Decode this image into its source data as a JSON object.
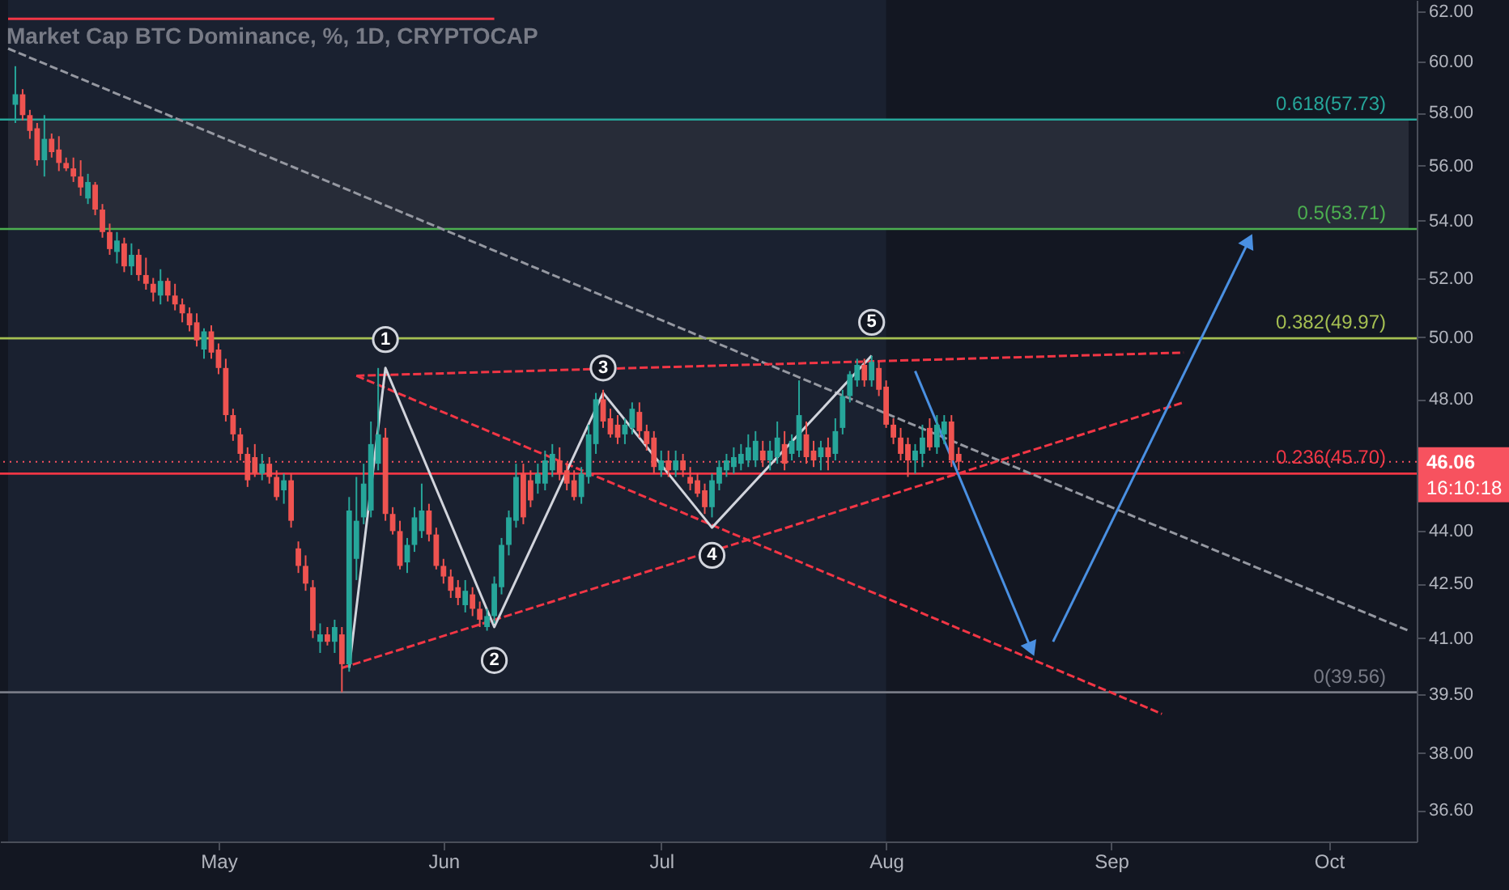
{
  "chart_data": {
    "type": "candlestick",
    "title": "Market Cap BTC Dominance, %, 1D, CRYPTOCAP",
    "xlim": [
      "--04-02",
      "--10-12"
    ],
    "xticks": [
      {
        "value": "--05-01",
        "label": "May"
      },
      {
        "value": "--06-01",
        "label": "Jun"
      },
      {
        "value": "--07-01",
        "label": "Jul"
      },
      {
        "value": "--08-01",
        "label": "Aug"
      },
      {
        "value": "--09-01",
        "label": "Sep"
      },
      {
        "value": "--10-01",
        "label": "Oct"
      }
    ],
    "log": true,
    "ylim": [
      35.85,
      62.47
    ],
    "yticks": [
      {
        "value": 62,
        "label": "62.00"
      },
      {
        "value": 60,
        "label": "60.00"
      },
      {
        "value": 58,
        "label": "58.00"
      },
      {
        "value": 56,
        "label": "56.00"
      },
      {
        "value": 54,
        "label": "54.00"
      },
      {
        "value": 52,
        "label": "52.00"
      },
      {
        "value": 50,
        "label": "50.00"
      },
      {
        "value": 48,
        "label": "48.00"
      },
      {
        "value": 44,
        "label": "44.00"
      },
      {
        "value": 42.5,
        "label": "42.50"
      },
      {
        "value": 41,
        "label": "41.00"
      },
      {
        "value": 39.5,
        "label": "39.50"
      },
      {
        "value": 38,
        "label": "38.00"
      },
      {
        "value": 36.6,
        "label": "36.60"
      }
    ],
    "x": [
      "--04-03",
      "--04-04",
      "--04-05",
      "--04-06",
      "--04-07",
      "--04-08",
      "--04-09",
      "--04-10",
      "--04-11",
      "--04-12",
      "--04-13",
      "--04-14",
      "--04-15",
      "--04-16",
      "--04-17",
      "--04-18",
      "--04-19",
      "--04-20",
      "--04-21",
      "--04-22",
      "--04-23",
      "--04-24",
      "--04-25",
      "--04-26",
      "--04-27",
      "--04-28",
      "--04-29",
      "--04-30",
      "--05-01",
      "--05-02",
      "--05-03",
      "--05-04",
      "--05-05",
      "--05-06",
      "--05-07",
      "--05-08",
      "--05-09",
      "--05-10",
      "--05-11",
      "--05-12",
      "--05-13",
      "--05-14",
      "--05-15",
      "--05-16",
      "--05-17",
      "--05-18",
      "--05-19",
      "--05-20",
      "--05-21",
      "--05-22",
      "--05-23",
      "--05-24",
      "--05-25",
      "--05-26",
      "--05-27",
      "--05-28",
      "--05-29",
      "--05-30",
      "--05-31",
      "--06-01",
      "--06-02",
      "--06-03",
      "--06-04",
      "--06-05",
      "--06-06",
      "--06-07",
      "--06-08",
      "--06-09",
      "--06-10",
      "--06-11",
      "--06-12",
      "--06-13",
      "--06-14",
      "--06-15",
      "--06-16",
      "--06-17",
      "--06-18",
      "--06-19",
      "--06-20",
      "--06-21",
      "--06-22",
      "--06-23",
      "--06-24",
      "--06-25",
      "--06-26",
      "--06-27",
      "--06-28",
      "--06-29",
      "--06-30",
      "--07-01",
      "--07-02",
      "--07-03",
      "--07-04",
      "--07-05",
      "--07-06",
      "--07-07",
      "--07-08",
      "--07-09",
      "--07-10",
      "--07-11",
      "--07-12",
      "--07-13",
      "--07-14",
      "--07-15",
      "--07-16",
      "--07-17",
      "--07-18",
      "--07-19",
      "--07-20",
      "--07-21",
      "--07-22",
      "--07-23",
      "--07-24",
      "--07-25",
      "--07-26",
      "--07-27",
      "--07-28",
      "--07-29",
      "--07-30",
      "--07-31",
      "--08-01",
      "--08-02",
      "--08-03",
      "--08-04",
      "--08-05",
      "--08-06",
      "--08-07",
      "--08-08",
      "--08-09",
      "--08-10",
      "--08-11"
    ],
    "ohlc": [
      [
        58.3,
        59.8,
        57.6,
        58.7
      ],
      [
        58.7,
        58.9,
        57.7,
        57.9
      ],
      [
        57.9,
        58.1,
        57.0,
        57.3
      ],
      [
        57.4,
        57.6,
        56.0,
        56.2
      ],
      [
        56.2,
        57.9,
        55.6,
        57.0
      ],
      [
        57.0,
        57.2,
        56.3,
        56.5
      ],
      [
        56.6,
        57.1,
        55.8,
        56.1
      ],
      [
        56.1,
        56.3,
        55.8,
        55.9
      ],
      [
        55.9,
        56.3,
        55.4,
        55.6
      ],
      [
        55.6,
        56.2,
        54.9,
        55.2
      ],
      [
        54.8,
        55.7,
        54.6,
        55.4
      ],
      [
        55.3,
        55.4,
        54.2,
        54.4
      ],
      [
        54.4,
        54.6,
        53.4,
        53.6
      ],
      [
        53.6,
        53.9,
        52.8,
        53.0
      ],
      [
        52.9,
        53.6,
        52.5,
        53.3
      ],
      [
        53.2,
        53.4,
        52.2,
        52.4
      ],
      [
        52.4,
        53.2,
        52.1,
        52.8
      ],
      [
        52.8,
        53.0,
        51.9,
        52.1
      ],
      [
        52.1,
        52.7,
        51.6,
        51.8
      ],
      [
        51.8,
        52.0,
        51.2,
        51.5
      ],
      [
        51.4,
        52.3,
        51.1,
        51.9
      ],
      [
        51.9,
        52.0,
        51.2,
        51.4
      ],
      [
        51.4,
        51.8,
        50.9,
        51.1
      ],
      [
        51.1,
        51.3,
        50.5,
        50.8
      ],
      [
        50.8,
        51.0,
        50.2,
        50.4
      ],
      [
        50.5,
        50.8,
        49.7,
        49.9
      ],
      [
        49.6,
        50.3,
        49.3,
        50.2
      ],
      [
        50.2,
        50.4,
        49.3,
        49.5
      ],
      [
        49.6,
        49.8,
        48.8,
        49.0
      ],
      [
        49.0,
        49.3,
        47.3,
        47.5
      ],
      [
        47.5,
        47.7,
        46.7,
        46.9
      ],
      [
        46.9,
        47.1,
        46.1,
        46.3
      ],
      [
        46.3,
        46.5,
        45.3,
        45.5
      ],
      [
        46.2,
        46.6,
        45.6,
        45.7
      ],
      [
        45.7,
        46.3,
        45.5,
        46.0
      ],
      [
        46.0,
        46.2,
        45.4,
        45.6
      ],
      [
        45.6,
        45.8,
        44.9,
        45.0
      ],
      [
        45.2,
        45.7,
        44.8,
        45.5
      ],
      [
        45.5,
        45.7,
        44.1,
        44.3
      ],
      [
        43.5,
        43.7,
        42.8,
        43.0
      ],
      [
        43.0,
        43.3,
        42.3,
        42.5
      ],
      [
        42.4,
        42.6,
        41.0,
        41.2
      ],
      [
        40.9,
        41.4,
        40.6,
        41.1
      ],
      [
        41.1,
        41.3,
        40.8,
        40.9
      ],
      [
        40.9,
        41.5,
        40.6,
        41.3
      ],
      [
        41.1,
        41.3,
        39.56,
        40.3
      ],
      [
        40.3,
        45.0,
        40.1,
        44.6
      ],
      [
        43.2,
        45.6,
        42.6,
        44.3
      ],
      [
        44.4,
        46.0,
        44.2,
        45.4
      ],
      [
        44.6,
        47.3,
        44.4,
        46.6
      ],
      [
        46.0,
        49.0,
        45.8,
        46.9
      ],
      [
        46.8,
        47.1,
        44.3,
        44.5
      ],
      [
        44.5,
        44.7,
        43.9,
        44.0
      ],
      [
        44.0,
        44.3,
        42.9,
        43.0
      ],
      [
        43.1,
        43.8,
        42.8,
        43.6
      ],
      [
        43.6,
        44.7,
        43.4,
        44.4
      ],
      [
        44.0,
        45.4,
        43.8,
        44.6
      ],
      [
        44.6,
        44.8,
        43.7,
        43.9
      ],
      [
        43.9,
        44.1,
        42.9,
        43.0
      ],
      [
        43.0,
        43.2,
        42.5,
        42.7
      ],
      [
        42.7,
        42.9,
        42.1,
        42.3
      ],
      [
        42.4,
        42.6,
        41.9,
        42.1
      ],
      [
        41.9,
        42.6,
        41.7,
        42.3
      ],
      [
        42.2,
        42.4,
        41.6,
        41.8
      ],
      [
        41.8,
        42.0,
        41.3,
        41.5
      ],
      [
        41.3,
        41.8,
        41.2,
        41.6
      ],
      [
        41.6,
        42.7,
        41.4,
        42.5
      ],
      [
        42.4,
        43.8,
        42.2,
        43.6
      ],
      [
        43.6,
        44.6,
        43.3,
        44.4
      ],
      [
        44.3,
        46.0,
        44.1,
        45.6
      ],
      [
        45.7,
        46.0,
        44.2,
        44.4
      ],
      [
        45.5,
        45.8,
        44.7,
        44.9
      ],
      [
        45.4,
        46.0,
        45.1,
        45.7
      ],
      [
        45.4,
        46.4,
        45.2,
        46.1
      ],
      [
        45.8,
        46.6,
        45.6,
        46.3
      ],
      [
        46.1,
        46.5,
        45.5,
        45.7
      ],
      [
        45.8,
        46.0,
        45.2,
        45.4
      ],
      [
        45.5,
        45.8,
        44.9,
        45.0
      ],
      [
        45.0,
        45.9,
        44.8,
        45.7
      ],
      [
        45.6,
        47.2,
        45.4,
        46.9
      ],
      [
        46.6,
        48.2,
        46.3,
        48.0
      ],
      [
        48.0,
        48.3,
        47.1,
        47.3
      ],
      [
        47.4,
        47.7,
        46.8,
        46.9
      ],
      [
        47.2,
        47.5,
        46.6,
        46.8
      ],
      [
        46.9,
        47.4,
        46.6,
        47.2
      ],
      [
        47.1,
        47.9,
        46.9,
        47.7
      ],
      [
        47.6,
        47.9,
        46.8,
        47.0
      ],
      [
        47.0,
        47.2,
        46.4,
        46.6
      ],
      [
        46.8,
        47.0,
        45.7,
        45.9
      ],
      [
        45.8,
        46.4,
        45.6,
        46.1
      ],
      [
        46.1,
        46.4,
        45.6,
        45.8
      ],
      [
        45.8,
        46.4,
        45.6,
        46.1
      ],
      [
        46.1,
        46.3,
        45.6,
        45.8
      ],
      [
        45.6,
        45.9,
        45.2,
        45.4
      ],
      [
        45.5,
        45.7,
        45.0,
        45.1
      ],
      [
        45.2,
        45.4,
        44.5,
        44.7
      ],
      [
        44.7,
        45.7,
        44.4,
        45.5
      ],
      [
        45.4,
        46.1,
        45.2,
        45.9
      ],
      [
        45.8,
        46.3,
        45.6,
        46.1
      ],
      [
        45.9,
        46.5,
        45.7,
        46.2
      ],
      [
        46.0,
        46.6,
        45.8,
        46.3
      ],
      [
        46.1,
        46.9,
        45.9,
        46.5
      ],
      [
        46.1,
        47.0,
        45.9,
        46.7
      ],
      [
        46.4,
        46.7,
        45.9,
        46.1
      ],
      [
        46.1,
        46.7,
        45.8,
        46.4
      ],
      [
        46.2,
        47.3,
        46.0,
        46.8
      ],
      [
        46.6,
        47.0,
        45.8,
        46.0
      ],
      [
        46.3,
        46.9,
        46.1,
        46.7
      ],
      [
        46.4,
        48.6,
        46.2,
        47.5
      ],
      [
        46.9,
        47.3,
        46.0,
        46.2
      ],
      [
        46.4,
        46.7,
        45.9,
        46.1
      ],
      [
        46.2,
        46.7,
        45.8,
        46.5
      ],
      [
        46.5,
        46.8,
        45.8,
        46.2
      ],
      [
        46.3,
        47.4,
        46.1,
        47.0
      ],
      [
        47.1,
        48.3,
        46.9,
        48.1
      ],
      [
        48.1,
        48.9,
        47.9,
        48.8
      ],
      [
        48.6,
        49.3,
        48.4,
        49.1
      ],
      [
        49.1,
        49.3,
        48.4,
        48.6
      ],
      [
        48.6,
        49.4,
        48.4,
        49.2
      ],
      [
        49.0,
        49.2,
        48.1,
        48.3
      ],
      [
        48.4,
        48.6,
        47.1,
        47.2
      ],
      [
        47.2,
        47.4,
        46.6,
        46.8
      ],
      [
        46.8,
        47.1,
        46.1,
        46.3
      ],
      [
        46.6,
        46.8,
        45.6,
        46.1
      ],
      [
        46.1,
        46.6,
        45.7,
        46.4
      ],
      [
        46.3,
        47.2,
        45.9,
        46.8
      ],
      [
        47.1,
        47.4,
        46.4,
        46.5
      ],
      [
        46.5,
        47.5,
        46.3,
        47.2
      ],
      [
        46.9,
        47.5,
        46.6,
        47.3
      ],
      [
        47.3,
        47.5,
        45.9,
        46.1
      ],
      [
        46.3,
        46.5,
        45.8,
        46.06
      ]
    ],
    "colors": [
      "#26a69a",
      "#ef5350",
      "#ef5350",
      "#ef5350",
      "#26a69a",
      "#ef5350",
      "#ef5350",
      "#ef5350",
      "#ef5350",
      "#ef5350",
      "#26a69a",
      "#ef5350",
      "#ef5350",
      "#ef5350",
      "#26a69a",
      "#ef5350",
      "#26a69a",
      "#ef5350",
      "#ef5350",
      "#ef5350",
      "#26a69a",
      "#ef5350",
      "#ef5350",
      "#ef5350",
      "#ef5350",
      "#ef5350",
      "#26a69a",
      "#ef5350",
      "#ef5350",
      "#ef5350",
      "#ef5350",
      "#ef5350",
      "#ef5350",
      "#ef5350",
      "#26a69a",
      "#ef5350",
      "#ef5350",
      "#26a69a",
      "#ef5350",
      "#ef5350",
      "#ef5350",
      "#ef5350",
      "#26a69a",
      "#ef5350",
      "#26a69a",
      "#ef5350",
      "#26a69a",
      "#26a69a",
      "#26a69a",
      "#26a69a",
      "#26a69a",
      "#ef5350",
      "#ef5350",
      "#ef5350",
      "#26a69a",
      "#26a69a",
      "#26a69a",
      "#ef5350",
      "#ef5350",
      "#ef5350",
      "#ef5350",
      "#ef5350",
      "#26a69a",
      "#ef5350",
      "#ef5350",
      "#26a69a",
      "#26a69a",
      "#26a69a",
      "#26a69a",
      "#26a69a",
      "#ef5350",
      "#ef5350",
      "#26a69a",
      "#26a69a",
      "#26a69a",
      "#ef5350",
      "#ef5350",
      "#ef5350",
      "#26a69a",
      "#26a69a",
      "#26a69a",
      "#ef5350",
      "#ef5350",
      "#ef5350",
      "#26a69a",
      "#26a69a",
      "#ef5350",
      "#ef5350",
      "#ef5350",
      "#26a69a",
      "#ef5350",
      "#26a69a",
      "#ef5350",
      "#ef5350",
      "#ef5350",
      "#ef5350",
      "#26a69a",
      "#26a69a",
      "#26a69a",
      "#26a69a",
      "#26a69a",
      "#26a69a",
      "#26a69a",
      "#ef5350",
      "#26a69a",
      "#26a69a",
      "#ef5350",
      "#26a69a",
      "#26a69a",
      "#ef5350",
      "#ef5350",
      "#26a69a",
      "#ef5350",
      "#26a69a",
      "#26a69a",
      "#26a69a",
      "#26a69a",
      "#ef5350",
      "#26a69a",
      "#ef5350",
      "#ef5350",
      "#ef5350",
      "#ef5350",
      "#ef5350",
      "#26a69a",
      "#26a69a",
      "#ef5350",
      "#26a69a",
      "#26a69a",
      "#ef5350",
      "#ef5350"
    ],
    "series": [
      {
        "type": "line",
        "x": [
          "--04-02",
          "--06-08"
        ],
        "values": [
          61.7,
          61.7
        ],
        "color": "#f23645",
        "line_style": "solid"
      },
      {
        "type": "line",
        "x": [
          "--04-02",
          "--10-12"
        ],
        "values": [
          60.5,
          41.2
        ],
        "color": "#9598a1",
        "line_style": "dashed"
      },
      {
        "type": "line",
        "x": [
          "--05-20",
          "--09-11"
        ],
        "values": [
          48.75,
          49.5
        ],
        "color": "#f23645",
        "line_style": "dashed"
      },
      {
        "type": "line",
        "x": [
          "--05-20",
          "--09-08"
        ],
        "values": [
          48.75,
          39.0
        ],
        "color": "#f23645",
        "line_style": "dashed"
      },
      {
        "type": "line",
        "x": [
          "--05-18",
          "--09-11"
        ],
        "values": [
          40.2,
          47.9
        ],
        "color": "#f23645",
        "line_style": "dashed"
      },
      {
        "type": "line",
        "x": [
          "--05-19",
          "--05-24",
          "--06-08",
          "--06-23",
          "--07-08",
          "--07-30"
        ],
        "values": [
          40.2,
          49.0,
          41.3,
          48.2,
          44.1,
          49.4
        ],
        "color": "#d1d4dc",
        "line_style": "solid"
      },
      {
        "type": "line",
        "x": [
          "--08-05",
          "--08-21"
        ],
        "values": [
          48.9,
          40.7
        ],
        "color": "#4a90e2",
        "line_style": "solid",
        "marker": "triangle"
      },
      {
        "type": "line",
        "x": [
          "--08-24",
          "--09-20"
        ],
        "values": [
          40.9,
          53.3
        ],
        "color": "#4a90e2",
        "line_style": "solid",
        "marker": "triangle"
      }
    ],
    "bands": [
      {
        "axis": "x",
        "from": "--04-02",
        "to": "--08-01",
        "color": "#1a2130"
      },
      {
        "axis": "y",
        "from": 53.71,
        "to": 57.73,
        "color": "#272c38"
      }
    ],
    "ref_lines": [
      {
        "axis": "y",
        "value": 57.73,
        "label": "0.618(57.73)",
        "color": "#26a69a",
        "line_style": "solid"
      },
      {
        "axis": "y",
        "value": 53.71,
        "label": "0.5(53.71)",
        "color": "#4caf50",
        "line_style": "solid"
      },
      {
        "axis": "y",
        "value": 49.97,
        "label": "0.382(49.97)",
        "color": "#a5bf52",
        "line_style": "solid"
      },
      {
        "axis": "y",
        "value": 45.7,
        "label": "0.236(45.70)",
        "color": "#f23645",
        "line_style": "solid"
      },
      {
        "axis": "y",
        "value": 39.56,
        "label": "0(39.56)",
        "color": "#787b86",
        "line_style": "solid"
      },
      {
        "axis": "y",
        "value": 46.06,
        "label": "46.06",
        "color": "#f7525f",
        "line_style": "dotted"
      }
    ],
    "annotations": [
      {
        "text": "1",
        "x": "--05-24",
        "y": 49.93
      },
      {
        "text": "2",
        "x": "--06-08",
        "y": 40.4
      },
      {
        "text": "3",
        "x": "--06-23",
        "y": 49.0
      },
      {
        "text": "4",
        "x": "--07-08",
        "y": 43.3
      },
      {
        "text": "5",
        "x": "--07-30",
        "y": 50.5
      },
      "16:10:18"
    ],
    "grid": false
  }
}
